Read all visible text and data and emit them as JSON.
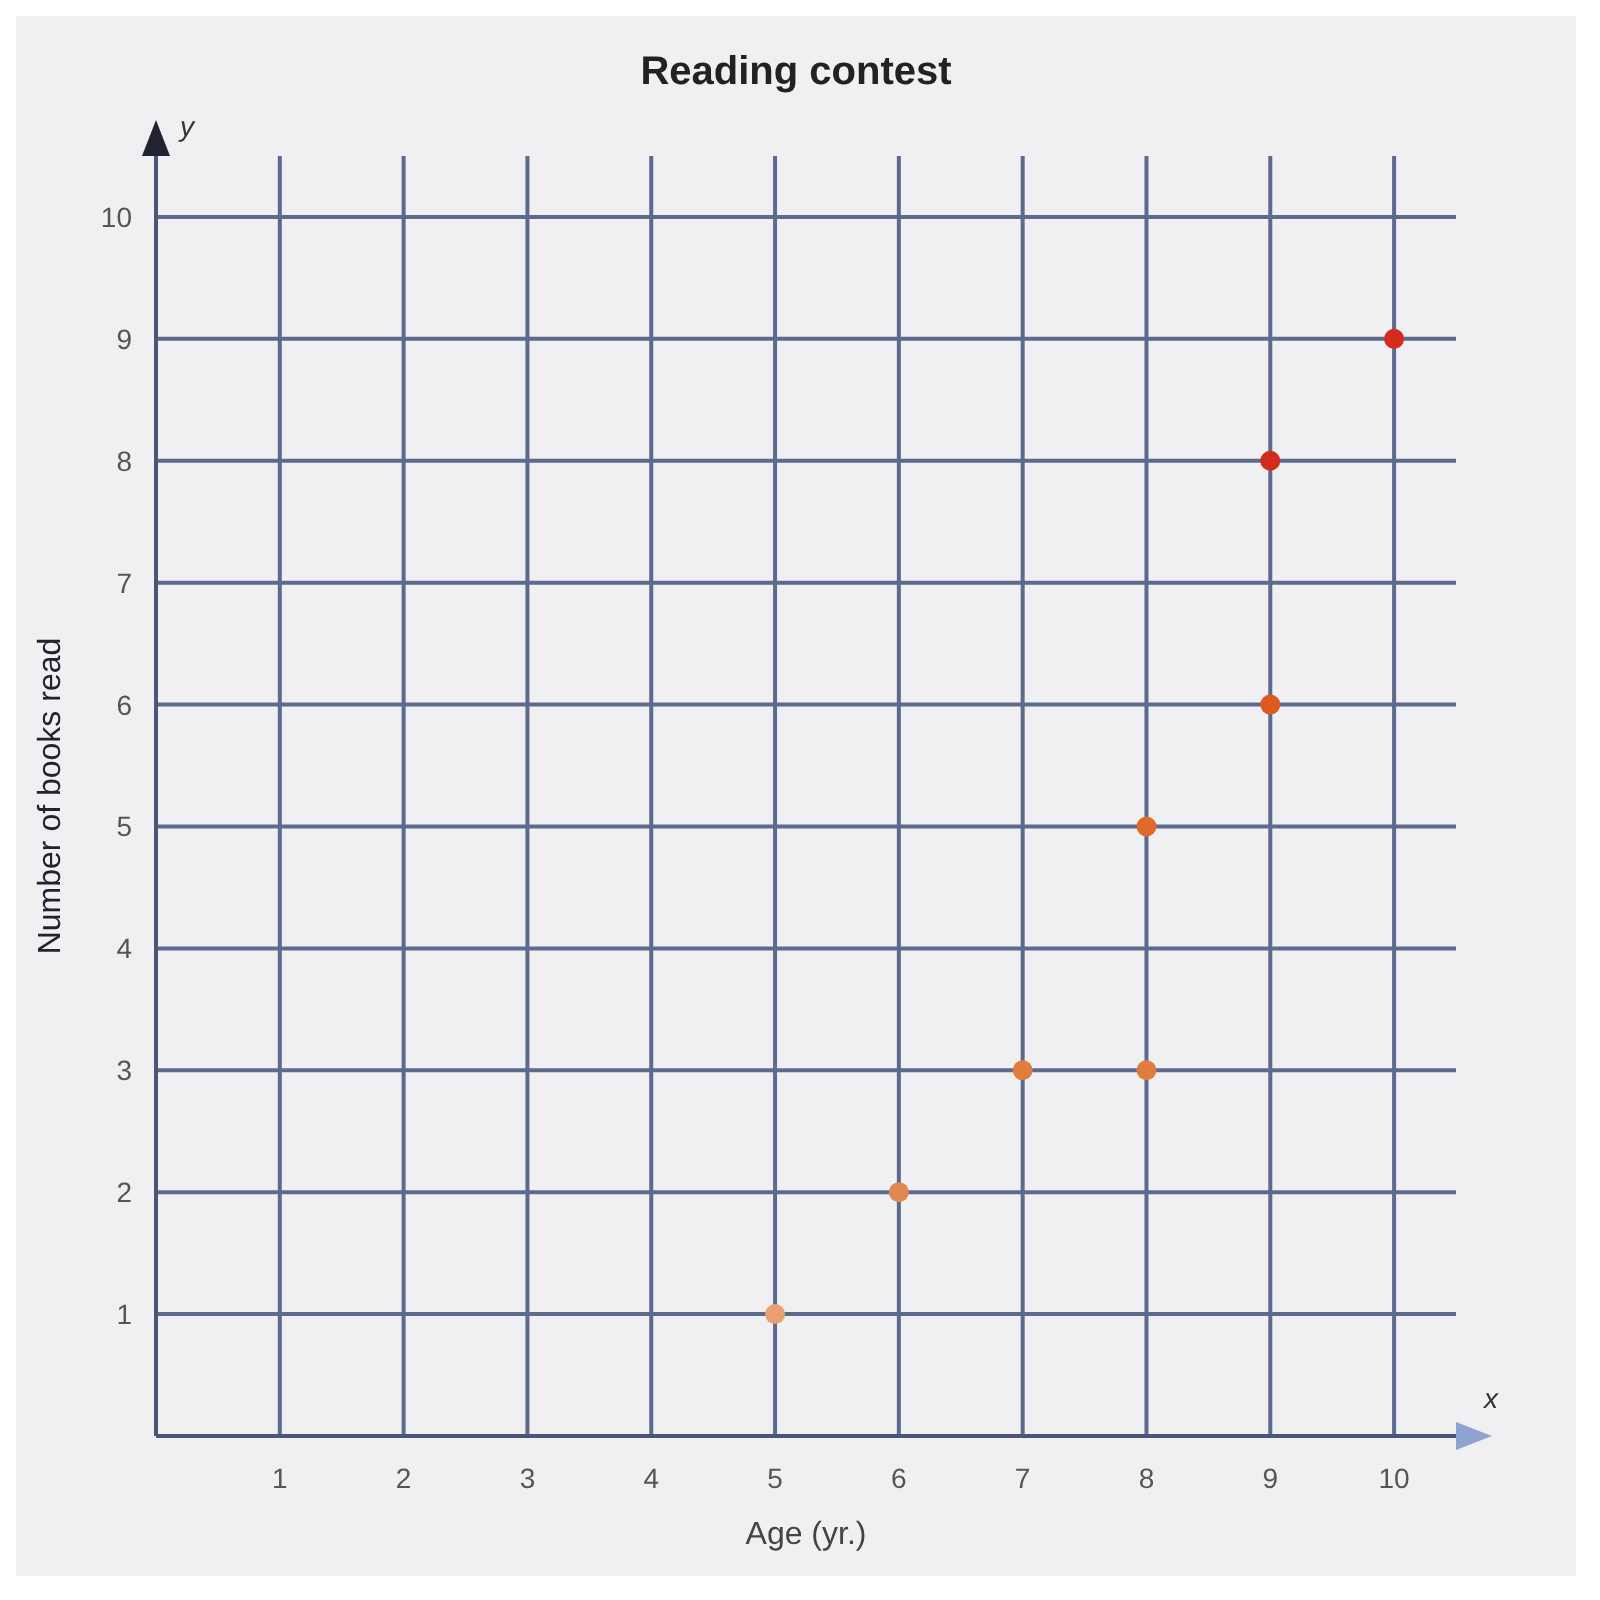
{
  "chart_data": {
    "type": "scatter",
    "title": "Reading contest",
    "xlabel": "Age (yr.)",
    "ylabel": "Number of books read",
    "annotations": [
      "x",
      "y"
    ],
    "x": [
      5,
      6,
      7,
      8,
      8,
      9,
      9,
      10
    ],
    "values": [
      1,
      2,
      3,
      3,
      5,
      6,
      8,
      9
    ],
    "colors": [
      "#e8a070",
      "#e08850",
      "#e07d3c",
      "#e07d3c",
      "#e06a2a",
      "#dc5a22",
      "#d42c1c",
      "#d42c1c"
    ],
    "xlim": [
      0,
      10.5
    ],
    "ylim": [
      0,
      10.5
    ],
    "xticks": [
      1,
      2,
      3,
      4,
      5,
      6,
      7,
      8,
      9,
      10
    ],
    "yticks": [
      1,
      2,
      3,
      4,
      5,
      6,
      7,
      8,
      9,
      10
    ],
    "grid": true,
    "marker": "circle"
  }
}
